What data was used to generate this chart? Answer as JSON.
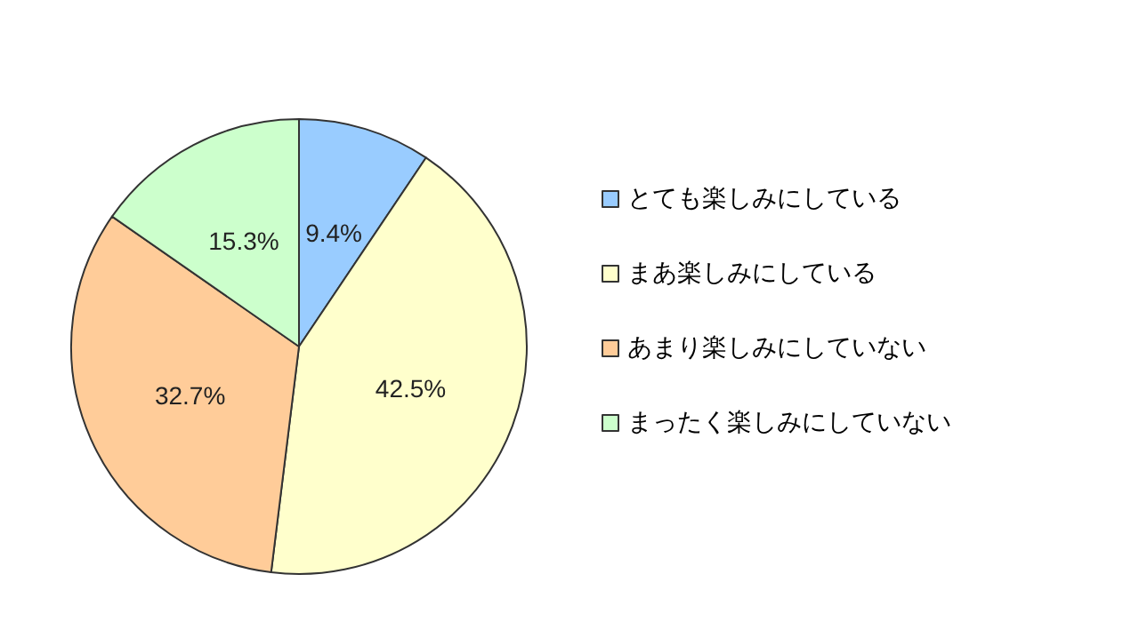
{
  "chart_data": {
    "type": "pie",
    "categories": [
      "とても楽しみにしている",
      "まあ楽しみにしている",
      "あまり楽しみにしていない",
      "まったく楽しみにしていない"
    ],
    "values": [
      9.4,
      42.5,
      32.7,
      15.3
    ],
    "colors": [
      "#99ccff",
      "#ffffcc",
      "#ffcc99",
      "#ccffcc"
    ],
    "value_labels": [
      "9.4%",
      "42.5%",
      "32.7%",
      "15.3%"
    ],
    "legend": "right"
  }
}
